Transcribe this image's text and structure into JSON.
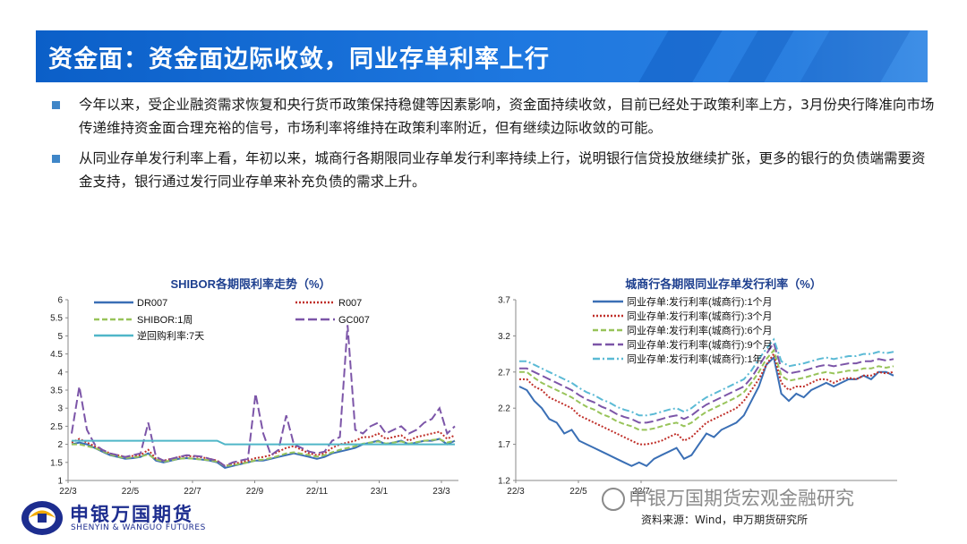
{
  "title": "资金面：资金面边际收敛，同业存单利率上行",
  "bullets": [
    "今年以来，受企业融资需求恢复和央行货币政策保持稳健等因素影响，资金面持续收敛，目前已经处于政策利率上方，3月份央行降准向市场传递维持资金面合理充裕的信号，市场利率将维持在政策利率附近，但有继续边际收敛的可能。",
    "从同业存单发行利率上看，年初以来，城商行各期限同业存单发行利率持续上行，说明银行信贷投放继续扩张，更多的银行的负债端需要资金支持，银行通过发行同业存单来补充负债的需求上升。"
  ],
  "chart_data": [
    {
      "type": "line",
      "title": "SHIBOR各期限利率走势（%）",
      "x_ticks": [
        "22/3",
        "22/5",
        "22/7",
        "22/9",
        "22/11",
        "23/1",
        "23/3"
      ],
      "y_ticks": [
        "1",
        "1.5",
        "2",
        "2.5",
        "3",
        "3.5",
        "4",
        "4.5",
        "5",
        "5.5",
        "6"
      ],
      "ylim": [
        1,
        6
      ],
      "legend_placement": "top",
      "series": [
        {
          "name": "DR007",
          "color": "#3a6fb5",
          "style": "solid",
          "values": [
            2.0,
            2.05,
            2.0,
            1.9,
            1.8,
            1.7,
            1.65,
            1.6,
            1.62,
            1.65,
            1.75,
            1.55,
            1.5,
            1.55,
            1.6,
            1.62,
            1.6,
            1.58,
            1.55,
            1.5,
            1.35,
            1.4,
            1.45,
            1.5,
            1.55,
            1.55,
            1.6,
            1.65,
            1.7,
            1.75,
            1.7,
            1.65,
            1.6,
            1.65,
            1.75,
            1.8,
            1.85,
            1.9,
            2.0,
            2.05,
            2.1,
            2.0,
            2.05,
            2.1,
            2.0,
            2.05,
            2.1,
            2.1,
            2.15,
            2.0,
            2.1
          ]
        },
        {
          "name": "R007",
          "color": "#c0302a",
          "style": "dotted",
          "values": [
            2.05,
            2.15,
            2.05,
            1.95,
            1.85,
            1.75,
            1.7,
            1.65,
            1.68,
            1.7,
            1.85,
            1.6,
            1.55,
            1.6,
            1.65,
            1.68,
            1.66,
            1.64,
            1.6,
            1.55,
            1.4,
            1.45,
            1.5,
            1.55,
            1.62,
            1.65,
            1.7,
            1.8,
            1.9,
            1.95,
            1.85,
            1.75,
            1.7,
            1.75,
            1.9,
            2.0,
            2.05,
            2.1,
            2.2,
            2.2,
            2.3,
            2.15,
            2.2,
            2.25,
            2.1,
            2.2,
            2.25,
            2.3,
            2.35,
            2.15,
            2.25
          ]
        },
        {
          "name": "SHIBOR:1周",
          "color": "#98c45a",
          "style": "dashed",
          "values": [
            2.0,
            2.0,
            1.95,
            1.9,
            1.82,
            1.72,
            1.66,
            1.62,
            1.64,
            1.66,
            1.72,
            1.58,
            1.52,
            1.56,
            1.6,
            1.62,
            1.6,
            1.58,
            1.56,
            1.52,
            1.4,
            1.42,
            1.46,
            1.5,
            1.56,
            1.58,
            1.62,
            1.68,
            1.75,
            1.78,
            1.74,
            1.7,
            1.66,
            1.7,
            1.78,
            1.85,
            1.9,
            1.95,
            2.02,
            2.05,
            2.08,
            2.02,
            2.05,
            2.08,
            2.02,
            2.06,
            2.1,
            2.12,
            2.14,
            2.05,
            2.1
          ]
        },
        {
          "name": "GC007",
          "color": "#7c55a8",
          "style": "longdash",
          "values": [
            2.3,
            3.6,
            2.4,
            2.0,
            1.85,
            1.75,
            1.7,
            1.65,
            1.7,
            1.75,
            2.6,
            1.65,
            1.55,
            1.6,
            1.65,
            1.7,
            1.68,
            1.66,
            1.6,
            1.55,
            1.4,
            1.5,
            1.55,
            1.6,
            3.4,
            2.3,
            1.7,
            1.85,
            2.8,
            2.0,
            1.9,
            1.8,
            1.75,
            1.8,
            2.1,
            2.2,
            5.3,
            2.4,
            2.3,
            2.5,
            2.6,
            2.3,
            2.4,
            2.5,
            2.3,
            2.4,
            2.6,
            2.7,
            3.0,
            2.3,
            2.5
          ]
        },
        {
          "name": "逆回购利率:7天",
          "color": "#4fb6c8",
          "style": "solid",
          "values": [
            2.1,
            2.1,
            2.1,
            2.1,
            2.1,
            2.1,
            2.1,
            2.1,
            2.1,
            2.1,
            2.1,
            2.1,
            2.1,
            2.1,
            2.1,
            2.1,
            2.1,
            2.1,
            2.1,
            2.1,
            2.0,
            2.0,
            2.0,
            2.0,
            2.0,
            2.0,
            2.0,
            2.0,
            2.0,
            2.0,
            2.0,
            2.0,
            2.0,
            2.0,
            2.0,
            2.0,
            2.0,
            2.0,
            2.0,
            2.0,
            2.0,
            2.0,
            2.0,
            2.0,
            2.0,
            2.0,
            2.0,
            2.0,
            2.0,
            2.0,
            2.0
          ]
        }
      ]
    },
    {
      "type": "line",
      "title": "城商行各期限同业存单发行利率（%）",
      "x_ticks": [
        "22/3",
        "22/5",
        "22/7"
      ],
      "y_ticks": [
        "1.2",
        "1.7",
        "2.2",
        "2.7",
        "3.2",
        "3.7"
      ],
      "ylim": [
        1.2,
        3.7
      ],
      "legend_placement": "top",
      "series": [
        {
          "name": "同业存单:发行利率(城商行):1个月",
          "color": "#3a6fb5",
          "style": "solid",
          "values": [
            2.5,
            2.45,
            2.3,
            2.2,
            2.05,
            2.0,
            1.85,
            1.9,
            1.75,
            1.7,
            1.65,
            1.6,
            1.55,
            1.5,
            1.45,
            1.4,
            1.45,
            1.4,
            1.5,
            1.55,
            1.6,
            1.65,
            1.5,
            1.55,
            1.7,
            1.85,
            1.8,
            1.9,
            1.95,
            2.0,
            2.1,
            2.3,
            2.5,
            2.8,
            2.9,
            2.4,
            2.3,
            2.4,
            2.35,
            2.45,
            2.5,
            2.55,
            2.5,
            2.55,
            2.6,
            2.6,
            2.65,
            2.6,
            2.7,
            2.7,
            2.65
          ]
        },
        {
          "name": "同业存单:发行利率(城商行):3个月",
          "color": "#c0302a",
          "style": "dotted",
          "values": [
            2.6,
            2.6,
            2.5,
            2.45,
            2.35,
            2.3,
            2.25,
            2.2,
            2.1,
            2.05,
            2.0,
            1.95,
            1.9,
            1.85,
            1.8,
            1.75,
            1.7,
            1.7,
            1.72,
            1.75,
            1.8,
            1.85,
            1.75,
            1.8,
            1.9,
            2.0,
            2.05,
            2.1,
            2.15,
            2.2,
            2.3,
            2.45,
            2.6,
            2.8,
            2.95,
            2.55,
            2.45,
            2.5,
            2.5,
            2.55,
            2.6,
            2.6,
            2.55,
            2.6,
            2.62,
            2.6,
            2.65,
            2.65,
            2.7,
            2.68,
            2.7
          ]
        },
        {
          "name": "同业存单:发行利率(城商行):6个月",
          "color": "#98c45a",
          "style": "dashed",
          "values": [
            2.7,
            2.7,
            2.62,
            2.55,
            2.5,
            2.45,
            2.4,
            2.35,
            2.28,
            2.22,
            2.18,
            2.12,
            2.08,
            2.02,
            1.98,
            1.95,
            1.9,
            1.9,
            1.92,
            1.95,
            1.98,
            2.0,
            1.95,
            2.0,
            2.08,
            2.15,
            2.2,
            2.25,
            2.3,
            2.35,
            2.42,
            2.55,
            2.7,
            2.88,
            3.0,
            2.65,
            2.58,
            2.6,
            2.62,
            2.65,
            2.68,
            2.7,
            2.68,
            2.7,
            2.72,
            2.72,
            2.75,
            2.75,
            2.78,
            2.76,
            2.78
          ]
        },
        {
          "name": "同业存单:发行利率(城商行):9个月",
          "color": "#7c55a8",
          "style": "longdash",
          "values": [
            2.75,
            2.75,
            2.7,
            2.65,
            2.6,
            2.55,
            2.5,
            2.45,
            2.38,
            2.32,
            2.28,
            2.22,
            2.18,
            2.12,
            2.08,
            2.05,
            2.0,
            2.0,
            2.02,
            2.05,
            2.08,
            2.1,
            2.05,
            2.1,
            2.18,
            2.25,
            2.3,
            2.35,
            2.4,
            2.45,
            2.5,
            2.62,
            2.78,
            2.95,
            3.1,
            2.75,
            2.68,
            2.7,
            2.72,
            2.75,
            2.78,
            2.8,
            2.78,
            2.8,
            2.82,
            2.82,
            2.85,
            2.85,
            2.88,
            2.86,
            2.88
          ]
        },
        {
          "name": "同业存单:发行利率(城商行):1年",
          "color": "#5bbad5",
          "style": "dashdot",
          "values": [
            2.85,
            2.85,
            2.8,
            2.75,
            2.7,
            2.65,
            2.6,
            2.55,
            2.48,
            2.42,
            2.38,
            2.32,
            2.28,
            2.22,
            2.18,
            2.15,
            2.1,
            2.1,
            2.12,
            2.15,
            2.18,
            2.2,
            2.15,
            2.2,
            2.28,
            2.35,
            2.4,
            2.45,
            2.5,
            2.55,
            2.6,
            2.72,
            2.88,
            3.02,
            3.15,
            2.85,
            2.78,
            2.8,
            2.82,
            2.85,
            2.88,
            2.9,
            2.88,
            2.9,
            2.92,
            2.92,
            2.95,
            2.95,
            2.98,
            2.96,
            2.98
          ]
        }
      ]
    }
  ],
  "logo": {
    "cn": "申银万国期货",
    "en": "SHENYIN & WANGUO FUTURES"
  },
  "watermark": "申银万国期货宏观金融研究",
  "source": "资料来源：Wind，申万期货研究所",
  "colors": {
    "title_bar": "#1565d8",
    "bullet_marker": "#3f86c8",
    "logo_blue": "#1d2d8f"
  }
}
